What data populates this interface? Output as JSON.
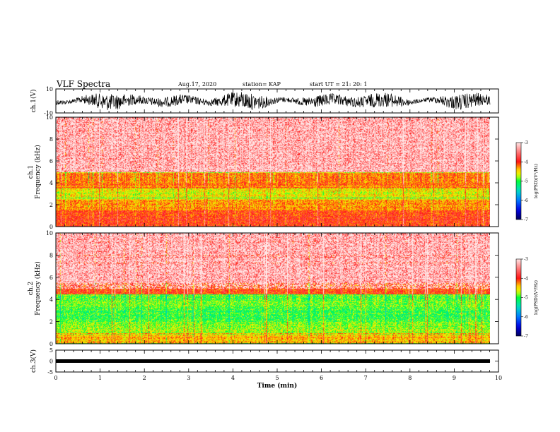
{
  "header": {
    "title": "VLF Spectra",
    "date": "Aug.17, 2020",
    "station": "station= KAP",
    "start": "start  UT  =   21: 20: 1"
  },
  "colors": {
    "waveform": "#000000",
    "colormap": [
      "#ffffff",
      "#ff6666",
      "#ff0000",
      "#ffff00",
      "#00ff00",
      "#00ccff",
      "#0000ff",
      "#000080"
    ]
  },
  "chart_data": [
    {
      "type": "line",
      "ylabel": "ch.1(V)",
      "ylim": [
        -10,
        10
      ],
      "ytick_labels": [
        "10",
        "-10"
      ],
      "xlim": [
        0,
        10
      ],
      "note_values": "waveform noise, approx. range -8 to 8 V with mean near 0"
    },
    {
      "type": "heatmap",
      "ylabel": "ch.1\nFrequency (kHz)",
      "ylim": [
        0,
        10
      ],
      "ytick_labels": [
        "0",
        "2",
        "4",
        "6",
        "8",
        "10"
      ],
      "xlim": [
        0,
        10
      ],
      "colorbar": {
        "label": "log(PSD)(V²/Hz)",
        "range": [
          -7,
          -3
        ],
        "tick_labels": [
          "-3",
          "-4",
          "-5",
          "-6",
          "-7"
        ]
      },
      "bands": [
        {
          "from_khz": 0,
          "to_khz": 1.5,
          "level": -4.0
        },
        {
          "from_khz": 1.5,
          "to_khz": 2.5,
          "level": -4.3
        },
        {
          "from_khz": 2.5,
          "to_khz": 3.5,
          "level": -4.6
        },
        {
          "from_khz": 3.5,
          "to_khz": 5,
          "level": -4.2
        },
        {
          "from_khz": 5,
          "to_khz": 10,
          "level": -3.5
        }
      ]
    },
    {
      "type": "heatmap",
      "ylabel": "ch.2\nFrequency (kHz)",
      "ylim": [
        0,
        10
      ],
      "ytick_labels": [
        "0",
        "2",
        "4",
        "6",
        "8",
        "10"
      ],
      "xlim": [
        0,
        10
      ],
      "colorbar": {
        "label": "log(PSD)(V²/Hz)",
        "range": [
          -7,
          -3
        ],
        "tick_labels": [
          "-3",
          "-4",
          "-5",
          "-6",
          "-7"
        ]
      },
      "bands": [
        {
          "from_khz": 0,
          "to_khz": 1,
          "level": -4.4
        },
        {
          "from_khz": 1,
          "to_khz": 2,
          "level": -4.8
        },
        {
          "from_khz": 2,
          "to_khz": 3.3,
          "level": -5.0
        },
        {
          "from_khz": 3.3,
          "to_khz": 4.5,
          "level": -4.9
        },
        {
          "from_khz": 4.5,
          "to_khz": 5.5,
          "level": -4.0
        },
        {
          "from_khz": 5.5,
          "to_khz": 10,
          "level": -3.5
        }
      ]
    },
    {
      "type": "line",
      "ylabel": "ch.3(V)",
      "ylim": [
        -5,
        5
      ],
      "ytick_labels": [
        "5",
        "0",
        "-5"
      ],
      "xlim": [
        0,
        10
      ],
      "xlabel": "Time (min)",
      "xtick_labels": [
        "0",
        "1",
        "2",
        "3",
        "4",
        "5",
        "6",
        "7",
        "8",
        "9",
        "10"
      ],
      "note_values": "flat signal near 0 V with very small noise"
    }
  ]
}
